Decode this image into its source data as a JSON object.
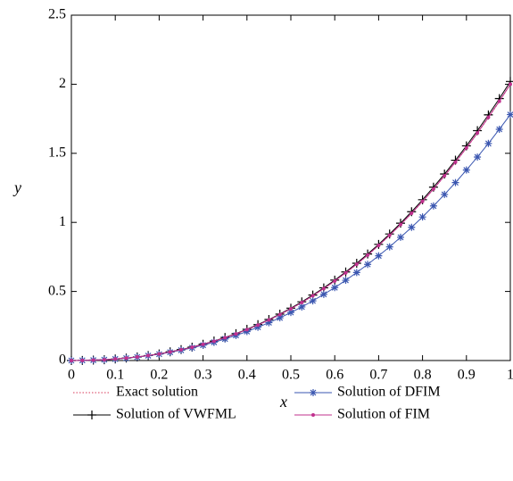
{
  "chart_data": {
    "type": "line",
    "xlabel": "x",
    "ylabel": "y",
    "xlim": [
      0,
      1
    ],
    "ylim": [
      0,
      2.5
    ],
    "xticks": [
      0,
      0.1,
      0.2,
      0.3,
      0.4,
      0.5,
      0.6,
      0.7,
      0.8,
      0.9,
      1
    ],
    "yticks": [
      0,
      0.5,
      1,
      1.5,
      2,
      2.5
    ],
    "x": [
      0,
      0.025,
      0.05,
      0.075,
      0.1,
      0.125,
      0.15,
      0.175,
      0.2,
      0.225,
      0.25,
      0.275,
      0.3,
      0.325,
      0.35,
      0.375,
      0.4,
      0.425,
      0.45,
      0.475,
      0.5,
      0.525,
      0.55,
      0.575,
      0.6,
      0.625,
      0.65,
      0.675,
      0.7,
      0.725,
      0.75,
      0.775,
      0.8,
      0.825,
      0.85,
      0.875,
      0.9,
      0.925,
      0.95,
      0.975,
      1
    ],
    "series": [
      {
        "name": "Exact solution",
        "color": "#e0607a",
        "style": "dotted",
        "values": [
          0,
          0.001,
          0.003,
          0.006,
          0.011,
          0.018,
          0.026,
          0.036,
          0.048,
          0.062,
          0.078,
          0.096,
          0.117,
          0.14,
          0.165,
          0.193,
          0.224,
          0.257,
          0.294,
          0.333,
          0.375,
          0.42,
          0.469,
          0.521,
          0.576,
          0.635,
          0.697,
          0.763,
          0.833,
          0.907,
          0.984,
          1.066,
          1.152,
          1.242,
          1.337,
          1.436,
          1.539,
          1.647,
          1.76,
          1.877,
          2
        ]
      },
      {
        "name": "Solution of VWFML",
        "color": "#000000",
        "style": "plus",
        "values": [
          0,
          0.001,
          0.003,
          0.006,
          0.011,
          0.018,
          0.026,
          0.036,
          0.048,
          0.063,
          0.079,
          0.097,
          0.118,
          0.141,
          0.167,
          0.195,
          0.226,
          0.26,
          0.297,
          0.336,
          0.379,
          0.425,
          0.474,
          0.526,
          0.582,
          0.641,
          0.704,
          0.771,
          0.841,
          0.916,
          0.994,
          1.077,
          1.164,
          1.255,
          1.35,
          1.45,
          1.554,
          1.664,
          1.778,
          1.896,
          2.02
        ]
      },
      {
        "name": "Solution of DFIM",
        "color": "#3a56b0",
        "style": "star",
        "values": [
          0,
          0.001,
          0.003,
          0.006,
          0.011,
          0.017,
          0.025,
          0.035,
          0.046,
          0.06,
          0.075,
          0.092,
          0.111,
          0.132,
          0.156,
          0.182,
          0.21,
          0.241,
          0.274,
          0.309,
          0.348,
          0.388,
          0.432,
          0.479,
          0.528,
          0.581,
          0.637,
          0.696,
          0.758,
          0.823,
          0.892,
          0.964,
          1.039,
          1.119,
          1.202,
          1.288,
          1.379,
          1.473,
          1.571,
          1.674,
          1.78
        ]
      },
      {
        "name": "Solution of FIM",
        "color": "#c0308e",
        "style": "dot",
        "values": [
          0,
          0.001,
          0.003,
          0.006,
          0.011,
          0.018,
          0.026,
          0.036,
          0.048,
          0.062,
          0.078,
          0.096,
          0.117,
          0.14,
          0.165,
          0.193,
          0.224,
          0.257,
          0.294,
          0.333,
          0.375,
          0.42,
          0.469,
          0.521,
          0.576,
          0.635,
          0.697,
          0.763,
          0.833,
          0.907,
          0.984,
          1.066,
          1.152,
          1.242,
          1.337,
          1.436,
          1.539,
          1.647,
          1.76,
          1.877,
          2
        ]
      }
    ]
  }
}
